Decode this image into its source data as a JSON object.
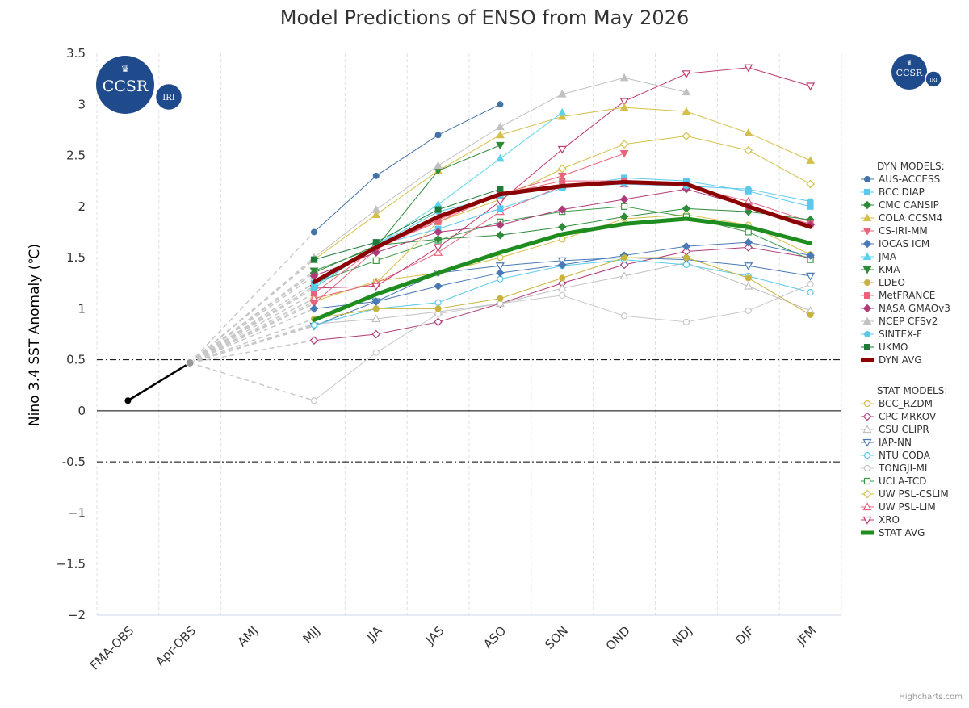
{
  "chart_data": {
    "type": "line",
    "title": "Model Predictions of ENSO from May 2026",
    "ylabel": "Nino 3.4 SST Anomaly (℃)",
    "xlabel": "",
    "ylim": [
      -2,
      3.5
    ],
    "yticks": [
      -2,
      -1.5,
      -1,
      -0.5,
      0,
      0.5,
      1,
      1.5,
      2,
      2.5,
      3,
      3.5
    ],
    "ytick_labels": [
      "−2",
      "−1.5",
      "−1",
      "-0.5",
      "0",
      "0.5",
      "1",
      "1.5",
      "2",
      "2.5",
      "3",
      "3.5"
    ],
    "categories": [
      "FMA-OBS",
      "Apr-OBS",
      "AMJ",
      "MJJ",
      "JJA",
      "JAS",
      "ASO",
      "SON",
      "OND",
      "NDJ",
      "DJF",
      "JFM"
    ],
    "reference_lines": [
      0.5,
      -0.5
    ],
    "zero_line": 0,
    "grid": "vertical-dashed",
    "legend_position": "right",
    "observed": {
      "values": [
        0.1,
        0.47
      ],
      "color": "#000000"
    },
    "dyn_heading": "DYN MODELS:",
    "stat_heading": "STAT MODELS:",
    "dyn_models": [
      {
        "name": "AUS-ACCESS",
        "color": "#4572a7",
        "marker": "circle",
        "filled": true,
        "start": 3,
        "values": [
          1.75,
          2.3,
          2.7,
          3.0
        ]
      },
      {
        "name": "BCC DIAP",
        "color": "#5bc8f0",
        "marker": "square",
        "filled": true,
        "start": 3,
        "values": [
          1.25,
          1.62,
          1.78,
          1.98,
          2.18,
          2.28,
          2.25,
          2.15,
          2.0
        ]
      },
      {
        "name": "CMC CANSIP",
        "color": "#2e8b3a",
        "marker": "diamond",
        "filled": true,
        "start": 3,
        "values": [
          1.35,
          1.62,
          1.68,
          1.72,
          1.8,
          1.9,
          1.98,
          1.95,
          1.87
        ]
      },
      {
        "name": "COLA CCSM4",
        "color": "#d4c048",
        "marker": "triangle",
        "filled": true,
        "start": 3,
        "values": [
          1.48,
          1.92,
          2.35,
          2.7,
          2.88,
          2.97,
          2.93,
          2.72,
          2.45
        ]
      },
      {
        "name": "CS-IRI-MM",
        "color": "#e8647c",
        "marker": "triangle-down",
        "filled": true,
        "start": 3,
        "values": [
          1.05,
          1.58,
          1.87,
          2.12,
          2.3,
          2.52
        ]
      },
      {
        "name": "IOCAS ICM",
        "color": "#4a7ab5",
        "marker": "diamond",
        "filled": true,
        "start": 3,
        "values": [
          1.0,
          1.07,
          1.22,
          1.35,
          1.43,
          1.52,
          1.61,
          1.65,
          1.52
        ]
      },
      {
        "name": "JMA",
        "color": "#5bd4ea",
        "marker": "triangle",
        "filled": true,
        "start": 3,
        "values": [
          1.22,
          1.62,
          2.02,
          2.47,
          2.92
        ]
      },
      {
        "name": "KMA",
        "color": "#2e8b3a",
        "marker": "triangle-down",
        "filled": true,
        "start": 3,
        "values": [
          1.37,
          1.6,
          2.35,
          2.6
        ]
      },
      {
        "name": "LDEO",
        "color": "#c8b43c",
        "marker": "circle",
        "filled": true,
        "start": 3,
        "values": [
          0.9,
          1.0,
          1.0,
          1.1,
          1.3,
          1.5,
          1.5,
          1.3,
          0.94
        ]
      },
      {
        "name": "MetFRANCE",
        "color": "#e8647c",
        "marker": "square",
        "filled": true,
        "start": 3,
        "values": [
          1.15,
          1.6,
          1.85,
          2.12,
          2.25,
          2.25,
          2.2,
          2.0,
          1.83
        ]
      },
      {
        "name": "NASA GMAOv3",
        "color": "#b03a78",
        "marker": "diamond",
        "filled": true,
        "start": 3,
        "values": [
          1.32,
          1.55,
          1.75,
          1.82,
          1.97,
          2.07,
          2.17,
          2.0,
          1.82
        ]
      },
      {
        "name": "NCEP CFSv2",
        "color": "#c0c0c0",
        "marker": "triangle",
        "filled": true,
        "start": 3,
        "values": [
          1.5,
          1.97,
          2.4,
          2.78,
          3.1,
          3.26,
          3.12
        ]
      },
      {
        "name": "SINTEX-F",
        "color": "#5bc8e8",
        "marker": "circle",
        "filled": true,
        "start": 3,
        "values": [
          1.2,
          1.62,
          1.95,
          2.1,
          2.19,
          2.22,
          2.2,
          2.17,
          2.05
        ]
      },
      {
        "name": "UKMO",
        "color": "#1f7a3a",
        "marker": "square",
        "filled": true,
        "start": 3,
        "values": [
          1.48,
          1.65,
          1.97,
          2.17
        ]
      },
      {
        "name": "DYN AVG",
        "color": "#8b0000",
        "avg": true,
        "start": 3,
        "values": [
          1.26,
          1.6,
          1.9,
          2.12,
          2.2,
          2.24,
          2.22,
          2.0,
          1.8
        ]
      }
    ],
    "stat_models": [
      {
        "name": "BCC_RZDM",
        "color": "#d4c048",
        "marker": "circle",
        "filled": false,
        "start": 3,
        "values": [
          1.07,
          1.27,
          1.35,
          1.5,
          1.68,
          1.88,
          1.92,
          1.82,
          1.53
        ]
      },
      {
        "name": "CPC MRKOV",
        "color": "#b03a78",
        "marker": "diamond",
        "filled": false,
        "start": 3,
        "values": [
          0.69,
          0.75,
          0.87,
          1.05,
          1.25,
          1.43,
          1.56,
          1.6,
          1.5
        ]
      },
      {
        "name": "CSU CLIPR",
        "color": "#c0c0c0",
        "marker": "triangle",
        "filled": false,
        "start": 3,
        "values": [
          0.85,
          0.9,
          0.97,
          1.05,
          1.2,
          1.32,
          1.45,
          1.22,
          0.98
        ]
      },
      {
        "name": "IAP-NN",
        "color": "#4a7ab5",
        "marker": "triangle-down",
        "filled": false,
        "start": 3,
        "values": [
          0.83,
          1.07,
          1.35,
          1.42,
          1.47,
          1.5,
          1.48,
          1.42,
          1.32
        ]
      },
      {
        "name": "NTU CODA",
        "color": "#5bc8e8",
        "marker": "circle",
        "filled": false,
        "start": 3,
        "values": [
          0.84,
          1.0,
          1.06,
          1.29,
          1.42,
          1.48,
          1.43,
          1.32,
          1.16
        ]
      },
      {
        "name": "TONGJI-ML",
        "color": "#c8c8c8",
        "marker": "circle",
        "filled": false,
        "start": 3,
        "values": [
          0.1,
          0.57,
          0.95,
          1.05,
          1.13,
          0.93,
          0.87,
          0.98,
          1.24
        ]
      },
      {
        "name": "UCLA-TCD",
        "color": "#3c9a4a",
        "marker": "square",
        "filled": false,
        "start": 3,
        "values": [
          1.25,
          1.47,
          1.67,
          1.85,
          1.95,
          2.0,
          1.9,
          1.75,
          1.48
        ]
      },
      {
        "name": "UW PSL-CSLIM",
        "color": "#d4c048",
        "marker": "diamond",
        "filled": false,
        "start": 3,
        "values": [
          1.1,
          1.25,
          1.85,
          2.07,
          2.37,
          2.61,
          2.69,
          2.55,
          2.22
        ]
      },
      {
        "name": "UW PSL-LIM",
        "color": "#e8647c",
        "marker": "triangle",
        "filled": false,
        "start": 3,
        "values": [
          1.1,
          1.25,
          1.55,
          1.95,
          2.2,
          2.22,
          2.2,
          2.05,
          1.85
        ]
      },
      {
        "name": "XRO",
        "color": "#c03a70",
        "marker": "triangle-down",
        "filled": false,
        "start": 3,
        "values": [
          1.2,
          1.22,
          1.6,
          2.05,
          2.56,
          3.03,
          3.3,
          3.36,
          3.18
        ]
      },
      {
        "name": "STAT AVG",
        "color": "#1e8c1e",
        "avg": true,
        "start": 3,
        "values": [
          0.89,
          1.14,
          1.35,
          1.55,
          1.73,
          1.83,
          1.88,
          1.8,
          1.64
        ]
      }
    ]
  },
  "logo": {
    "main_text": "CCSR",
    "badge_text": "IRI",
    "primary_color": "#1f4a8c"
  },
  "credits": "Highcharts.com"
}
